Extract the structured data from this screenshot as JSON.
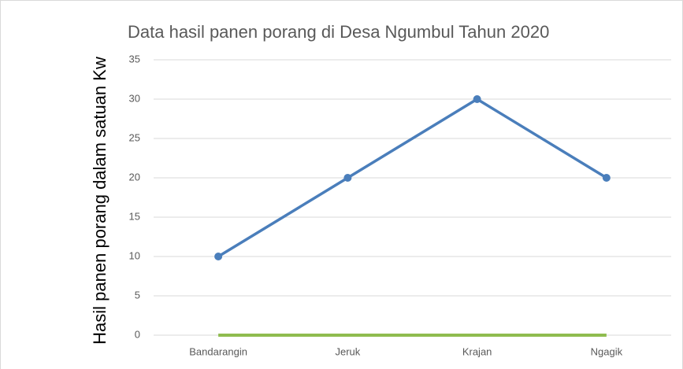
{
  "chart_data": {
    "type": "line",
    "title": "Data hasil panen porang di Desa Ngumbul Tahun 2020",
    "y_label": "Hasil panen porang dalam satuan Kw",
    "categories": [
      "Bandarangin",
      "Jeruk",
      "Krajan",
      "Ngagik"
    ],
    "series": [
      {
        "color": "#4a7ebb",
        "values": [
          10,
          20,
          30,
          20
        ]
      },
      {
        "color": "#8fbc4f",
        "values": [
          0,
          0,
          0,
          0
        ]
      }
    ],
    "ylim": [
      0,
      35
    ],
    "yticks": [
      0,
      5,
      10,
      15,
      20,
      25,
      30,
      35
    ],
    "grid": true
  }
}
